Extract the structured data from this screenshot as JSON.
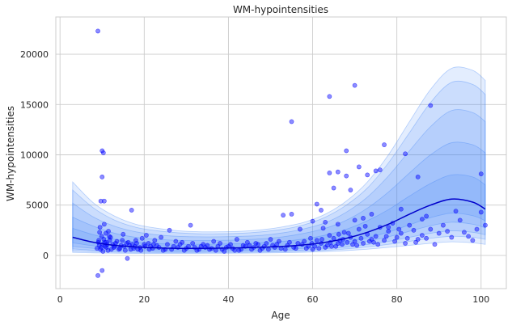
{
  "chart_data": {
    "type": "scatter",
    "title": "WM-hypointensities",
    "xlabel": "Age",
    "ylabel": "WM-hypointensities",
    "xlim": [
      -1,
      106
    ],
    "ylim": [
      -3300,
      23700
    ],
    "xticks": [
      0,
      20,
      40,
      60,
      80,
      100
    ],
    "yticks": [
      0,
      5000,
      10000,
      15000,
      20000
    ],
    "grid": true,
    "colors": {
      "points": "#0000ff",
      "median_line": "#0000cc",
      "band": "#3b82f6"
    },
    "centile_curves": {
      "x": [
        3,
        8,
        13,
        18,
        23,
        28,
        33,
        38,
        43,
        48,
        53,
        58,
        63,
        68,
        73,
        78,
        83,
        88,
        93,
        98,
        101
      ],
      "median": [
        1800,
        1300,
        1000,
        850,
        750,
        700,
        700,
        720,
        760,
        820,
        900,
        1050,
        1300,
        1700,
        2300,
        3100,
        4100,
        5000,
        5600,
        5300,
        4600
      ],
      "bands": [
        {
          "lower": [
            300,
            250,
            220,
            200,
            200,
            200,
            200,
            210,
            220,
            240,
            270,
            310,
            380,
            480,
            620,
            800,
            1000,
            1200,
            1350,
            1250,
            1100
          ],
          "upper": [
            7300,
            5200,
            3900,
            3100,
            2700,
            2450,
            2350,
            2350,
            2400,
            2550,
            2850,
            3300,
            4100,
            5400,
            7300,
            10000,
            13300,
            16500,
            18600,
            18400,
            17400
          ]
        },
        {
          "lower": [
            450,
            380,
            320,
            290,
            280,
            280,
            280,
            290,
            300,
            330,
            370,
            420,
            520,
            650,
            850,
            1100,
            1400,
            1700,
            1900,
            1800,
            1600
          ],
          "upper": [
            6500,
            4700,
            3500,
            2800,
            2450,
            2250,
            2150,
            2150,
            2200,
            2350,
            2600,
            3050,
            3800,
            5000,
            6700,
            9200,
            12200,
            15200,
            17200,
            17000,
            16000
          ]
        },
        {
          "lower": [
            650,
            520,
            440,
            390,
            370,
            360,
            360,
            370,
            390,
            420,
            470,
            540,
            660,
            830,
            1080,
            1400,
            1800,
            2200,
            2450,
            2300,
            2050
          ],
          "upper": [
            5200,
            3800,
            2900,
            2350,
            2050,
            1900,
            1850,
            1850,
            1900,
            2000,
            2250,
            2650,
            3250,
            4300,
            5800,
            7900,
            10400,
            12800,
            14400,
            14200,
            13300
          ]
        },
        {
          "lower": [
            900,
            700,
            580,
            510,
            480,
            460,
            460,
            480,
            500,
            540,
            600,
            700,
            850,
            1080,
            1420,
            1850,
            2400,
            2950,
            3300,
            3100,
            2750
          ],
          "upper": [
            3800,
            2900,
            2200,
            1800,
            1600,
            1500,
            1480,
            1500,
            1550,
            1650,
            1850,
            2200,
            2700,
            3500,
            4700,
            6300,
            8200,
            10000,
            11200,
            11000,
            10200
          ]
        },
        {
          "lower": [
            1250,
            950,
            770,
            660,
            600,
            570,
            570,
            590,
            620,
            670,
            740,
            860,
            1040,
            1320,
            1760,
            2320,
            3040,
            3750,
            4200,
            3950,
            3450
          ],
          "upper": [
            2700,
            2050,
            1600,
            1330,
            1190,
            1120,
            1110,
            1130,
            1180,
            1260,
            1400,
            1640,
            2020,
            2600,
            3450,
            4550,
            5900,
            7150,
            8000,
            7800,
            7000
          ]
        }
      ]
    },
    "points": [
      [
        9,
        22300
      ],
      [
        10,
        10400
      ],
      [
        10.3,
        10200
      ],
      [
        10,
        7800
      ],
      [
        9.7,
        5400
      ],
      [
        10.5,
        5400
      ],
      [
        9,
        -2000
      ],
      [
        10,
        -1500
      ],
      [
        17,
        4500
      ],
      [
        16,
        -300
      ],
      [
        64,
        15800
      ],
      [
        70,
        16900
      ],
      [
        55,
        13300
      ],
      [
        68,
        10400
      ],
      [
        88,
        14900
      ],
      [
        85,
        7800
      ],
      [
        82,
        10100
      ],
      [
        77,
        11000
      ],
      [
        75,
        8400
      ],
      [
        76,
        8500
      ],
      [
        73,
        8000
      ],
      [
        71,
        8800
      ],
      [
        68,
        7900
      ],
      [
        65,
        6700
      ],
      [
        64,
        8200
      ],
      [
        66,
        8300
      ],
      [
        69,
        6500
      ],
      [
        61,
        5100
      ],
      [
        62,
        4500
      ],
      [
        100,
        8100
      ],
      [
        100,
        4300
      ],
      [
        94,
        4400
      ],
      [
        87,
        3900
      ],
      [
        86,
        3600
      ],
      [
        81,
        4600
      ],
      [
        79,
        3200
      ],
      [
        78,
        2800
      ],
      [
        74,
        4100
      ],
      [
        72,
        3700
      ],
      [
        70,
        3500
      ],
      [
        66,
        3100
      ],
      [
        63,
        3300
      ],
      [
        60,
        3400
      ],
      [
        57,
        2600
      ],
      [
        55,
        4100
      ],
      [
        53,
        4000
      ],
      [
        50,
        1600
      ],
      [
        47,
        1100
      ],
      [
        44,
        900
      ],
      [
        42,
        1600
      ],
      [
        40,
        900
      ],
      [
        38,
        1200
      ],
      [
        36,
        700
      ],
      [
        34,
        1100
      ],
      [
        32,
        800
      ],
      [
        31,
        3000
      ],
      [
        29,
        1300
      ],
      [
        27,
        900
      ],
      [
        26,
        2500
      ],
      [
        24,
        1800
      ],
      [
        22,
        700
      ],
      [
        21,
        1200
      ],
      [
        19,
        800
      ],
      [
        18,
        1500
      ],
      [
        15,
        2100
      ],
      [
        14,
        600
      ],
      [
        13,
        900
      ],
      [
        12,
        1800
      ],
      [
        11,
        1300
      ],
      [
        10.5,
        3100
      ],
      [
        9.5,
        2800
      ],
      [
        9.2,
        1500
      ],
      [
        8.8,
        700
      ],
      [
        10.2,
        400
      ],
      [
        11.5,
        2400
      ],
      [
        12.5,
        1100
      ],
      [
        16.5,
        1000
      ],
      [
        17.5,
        700
      ],
      [
        20,
        1100
      ],
      [
        23,
        1000
      ],
      [
        25,
        600
      ],
      [
        28,
        800
      ],
      [
        30,
        700
      ],
      [
        33,
        600
      ],
      [
        35,
        1000
      ],
      [
        37,
        500
      ],
      [
        39,
        400
      ],
      [
        41,
        700
      ],
      [
        43,
        600
      ],
      [
        45,
        1000
      ],
      [
        46,
        800
      ],
      [
        48,
        700
      ],
      [
        49,
        1200
      ],
      [
        51,
        800
      ],
      [
        52,
        1400
      ],
      [
        54,
        1000
      ],
      [
        56,
        700
      ],
      [
        58,
        1400
      ],
      [
        59,
        900
      ],
      [
        60,
        600
      ],
      [
        61,
        1500
      ],
      [
        62,
        1200
      ],
      [
        63,
        800
      ],
      [
        64,
        2000
      ],
      [
        65,
        1700
      ],
      [
        66,
        1200
      ],
      [
        67,
        1100
      ],
      [
        67.5,
        2300
      ],
      [
        69,
        1800
      ],
      [
        70,
        1400
      ],
      [
        71,
        2600
      ],
      [
        72,
        1200
      ],
      [
        73,
        2100
      ],
      [
        74,
        1600
      ],
      [
        75,
        1900
      ],
      [
        76,
        2800
      ],
      [
        77,
        1500
      ],
      [
        78,
        2400
      ],
      [
        80,
        1800
      ],
      [
        81,
        2200
      ],
      [
        82,
        1200
      ],
      [
        83,
        3000
      ],
      [
        84,
        2500
      ],
      [
        85,
        1600
      ],
      [
        86,
        2000
      ],
      [
        88,
        2600
      ],
      [
        90,
        2200
      ],
      [
        91,
        3000
      ],
      [
        92,
        2400
      ],
      [
        95,
        3500
      ],
      [
        97,
        1900
      ],
      [
        99,
        2600
      ],
      [
        98,
        1500
      ],
      [
        93,
        1800
      ],
      [
        89,
        1100
      ],
      [
        20.5,
        2000
      ],
      [
        22.5,
        1500
      ],
      [
        24.5,
        500
      ],
      [
        27.5,
        1400
      ],
      [
        29.5,
        500
      ],
      [
        31.5,
        1200
      ],
      [
        33.5,
        900
      ],
      [
        36.5,
        1400
      ],
      [
        39.5,
        800
      ],
      [
        42.5,
        500
      ],
      [
        44.5,
        1300
      ],
      [
        47.5,
        500
      ],
      [
        50.5,
        1000
      ],
      [
        53.5,
        600
      ],
      [
        57.5,
        1100
      ],
      [
        59.5,
        1700
      ],
      [
        62.5,
        2700
      ],
      [
        64.5,
        900
      ],
      [
        66.5,
        1500
      ],
      [
        68.5,
        2200
      ],
      [
        70.5,
        1000
      ],
      [
        72.5,
        2900
      ],
      [
        74.5,
        1300
      ],
      [
        11,
        800
      ],
      [
        11.8,
        1500
      ],
      [
        12.2,
        600
      ],
      [
        13.5,
        1400
      ],
      [
        14.5,
        1000
      ],
      [
        15.5,
        500
      ],
      [
        16.2,
        1300
      ],
      [
        18.5,
        600
      ],
      [
        19.5,
        1700
      ],
      [
        21.5,
        900
      ],
      [
        9.3,
        1000
      ],
      [
        9.6,
        600
      ],
      [
        9.9,
        1900
      ],
      [
        10.1,
        1100
      ],
      [
        10.4,
        1600
      ],
      [
        10.7,
        900
      ],
      [
        10.9,
        2200
      ],
      [
        9.1,
        1300
      ],
      [
        9.4,
        2300
      ],
      [
        9.8,
        800
      ],
      [
        10.6,
        1300
      ],
      [
        11.2,
        1100
      ],
      [
        11.4,
        500
      ],
      [
        11.7,
        1900
      ],
      [
        12.8,
        800
      ],
      [
        13.2,
        1200
      ],
      [
        14.2,
        700
      ],
      [
        14.8,
        1500
      ],
      [
        15.2,
        900
      ],
      [
        15.8,
        1200
      ],
      [
        16.8,
        600
      ],
      [
        17.2,
        1100
      ],
      [
        17.8,
        900
      ],
      [
        18.2,
        1200
      ],
      [
        19.2,
        500
      ],
      [
        20.2,
        900
      ],
      [
        21.2,
        600
      ],
      [
        22.2,
        1100
      ],
      [
        23.5,
        800
      ],
      [
        25.5,
        1100
      ],
      [
        26.5,
        600
      ],
      [
        28.5,
        1100
      ],
      [
        30.5,
        900
      ],
      [
        32.5,
        500
      ],
      [
        34.5,
        800
      ],
      [
        35.5,
        600
      ],
      [
        37.5,
        900
      ],
      [
        38.5,
        600
      ],
      [
        40.5,
        1100
      ],
      [
        41.5,
        500
      ],
      [
        43.5,
        1000
      ],
      [
        45.5,
        600
      ],
      [
        46.5,
        1200
      ],
      [
        48.5,
        900
      ],
      [
        49.5,
        600
      ],
      [
        51.5,
        1100
      ],
      [
        52.5,
        700
      ],
      [
        54.5,
        1300
      ],
      [
        55.5,
        800
      ],
      [
        56.5,
        1200
      ],
      [
        58.5,
        700
      ],
      [
        59.8,
        1200
      ],
      [
        60.5,
        900
      ],
      [
        61.5,
        700
      ],
      [
        62.2,
        1600
      ],
      [
        63.5,
        1000
      ],
      [
        64.2,
        1300
      ],
      [
        65.5,
        900
      ],
      [
        66.2,
        2100
      ],
      [
        67.2,
        1600
      ],
      [
        68.2,
        1300
      ],
      [
        69.5,
        1100
      ],
      [
        71.5,
        1700
      ],
      [
        73.5,
        1400
      ],
      [
        75.5,
        1100
      ],
      [
        77.5,
        1900
      ],
      [
        79.5,
        1400
      ],
      [
        80.5,
        2600
      ],
      [
        82.5,
        1700
      ],
      [
        84.5,
        1300
      ],
      [
        87,
        1700
      ],
      [
        96,
        2300
      ],
      [
        101,
        3000
      ]
    ]
  }
}
